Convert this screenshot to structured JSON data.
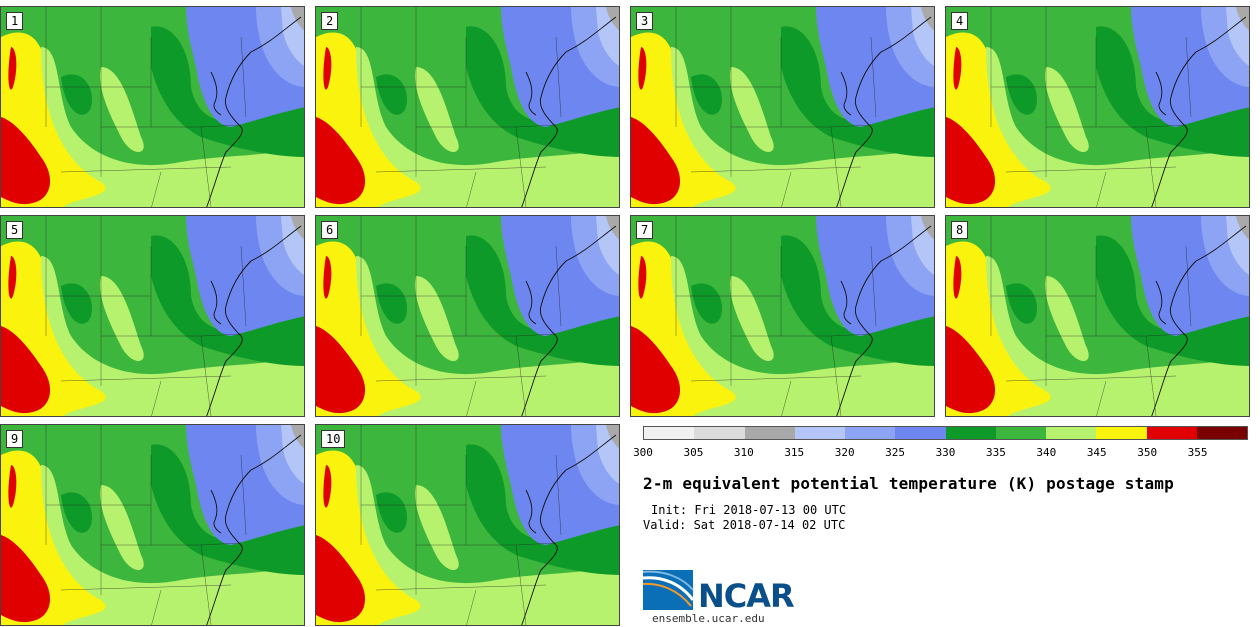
{
  "panels": [
    {
      "label": "1"
    },
    {
      "label": "2"
    },
    {
      "label": "3"
    },
    {
      "label": "4"
    },
    {
      "label": "5"
    },
    {
      "label": "6"
    },
    {
      "label": "7"
    },
    {
      "label": "8"
    },
    {
      "label": "9"
    },
    {
      "label": "10"
    }
  ],
  "colorbar": {
    "colors": [
      "#f1f1f1",
      "#dcdcdc",
      "#a9a9a9",
      "#b4c5f7",
      "#8da4f5",
      "#6e86ef",
      "#0e9a28",
      "#3cb63c",
      "#b7f26e",
      "#f9f30e",
      "#e00000",
      "#7a0000"
    ],
    "ticks": [
      "300",
      "305",
      "310",
      "315",
      "320",
      "325",
      "330",
      "335",
      "340",
      "345",
      "350",
      "355"
    ]
  },
  "map_colors": {
    "green_dark": "#0e9a28",
    "green": "#3cb63c",
    "green_light": "#b7f26e",
    "yellow": "#f9f30e",
    "red": "#e00000",
    "blue_light": "#b4c5f7",
    "blue": "#8da4f5",
    "blue_dark": "#6e86ef",
    "gray": "#a9a9a9"
  },
  "title": "2-m equivalent potential temperature (K) postage stamp",
  "init": "Init: Fri 2018-07-13 00 UTC",
  "valid": "Valid: Sat 2018-07-14 02 UTC",
  "logo_text": "NCAR",
  "site": "ensemble.ucar.edu"
}
